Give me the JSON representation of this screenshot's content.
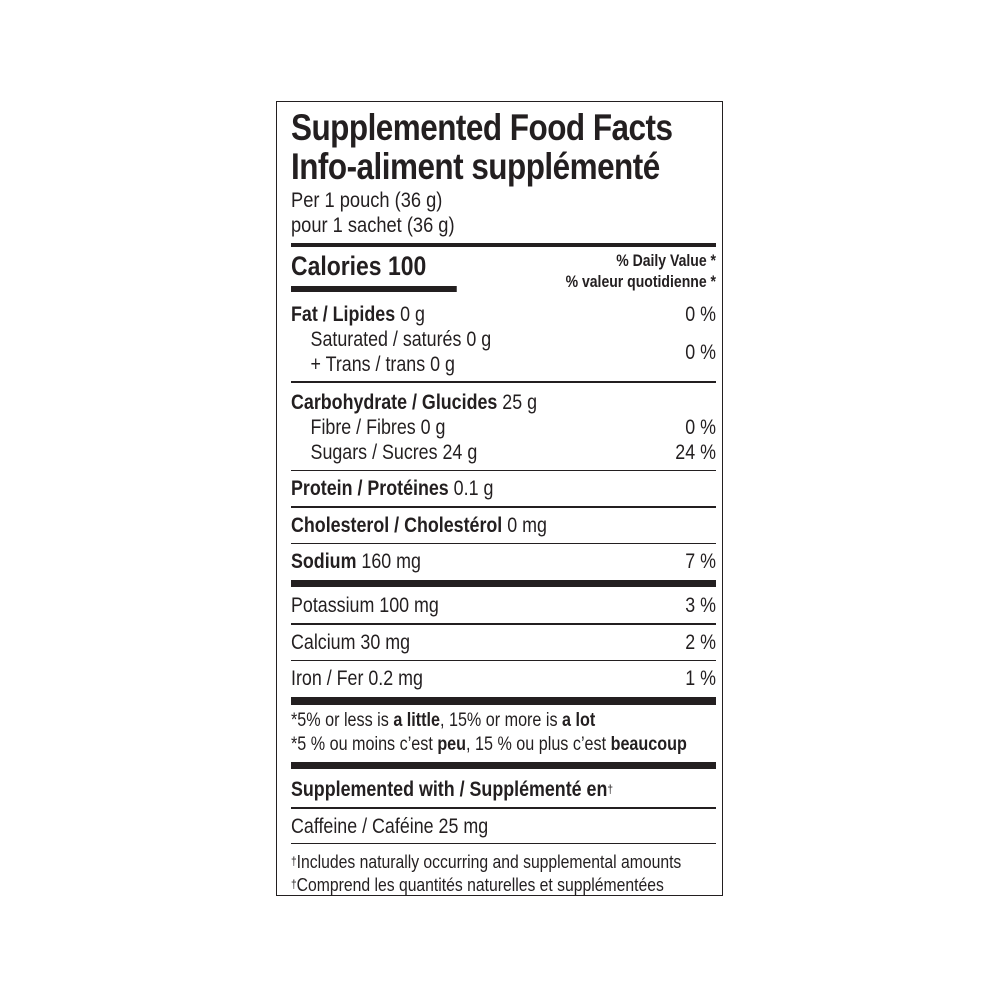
{
  "title_en": "Supplemented Food Facts",
  "title_fr": "Info-aliment supplémenté",
  "serving_en": "Per 1 pouch (36 g)",
  "serving_fr": "pour 1 sachet (36 g)",
  "calories": {
    "label": "Calories",
    "value": "100"
  },
  "dv_en": "% Daily Value",
  "dv_fr": "% valeur quotidienne",
  "asterisk": "*",
  "fat": {
    "label": "Fat / Lipides",
    "amount": "0 g",
    "dv": "0 %"
  },
  "saturated": {
    "label": "Saturated / saturés 0 g"
  },
  "trans": {
    "label": "+ Trans / trans 0 g",
    "dv": "0 %"
  },
  "carb": {
    "label": "Carbohydrate / Glucides",
    "amount": "25 g"
  },
  "fibre": {
    "label": "Fibre / Fibres 0 g",
    "dv": "0 %"
  },
  "sugars": {
    "label": "Sugars / Sucres 24 g",
    "dv": "24 %"
  },
  "protein": {
    "label": "Protein / Protéines",
    "amount": "0.1 g"
  },
  "cholesterol": {
    "label": "Cholesterol / Cholestérol",
    "amount": "0 mg"
  },
  "sodium": {
    "label": "Sodium",
    "amount": "160 mg",
    "dv": "7 %"
  },
  "potassium": {
    "label": "Potassium 100 mg",
    "dv": "3 %"
  },
  "calcium": {
    "label": "Calcium 30 mg",
    "dv": "2 %"
  },
  "iron": {
    "label": "Iron / Fer 0.2 mg",
    "dv": "1 %"
  },
  "note_en": {
    "a": "*5% or less is ",
    "b": "a little",
    "c": ", 15% or more is ",
    "d": "a lot"
  },
  "note_fr": {
    "a": "*5 % ou moins c’est ",
    "b": "peu",
    "c": ", 15 % ou plus c’est ",
    "d": "beaucoup"
  },
  "supp_heading": "Supplemented with / Supplémenté en",
  "dagger": "†",
  "caffeine": "Caffeine / Caféine 25 mg",
  "foot_en": "Includes naturally occurring and supplemental amounts",
  "foot_fr": "Comprend les quantités naturelles et supplémentées"
}
